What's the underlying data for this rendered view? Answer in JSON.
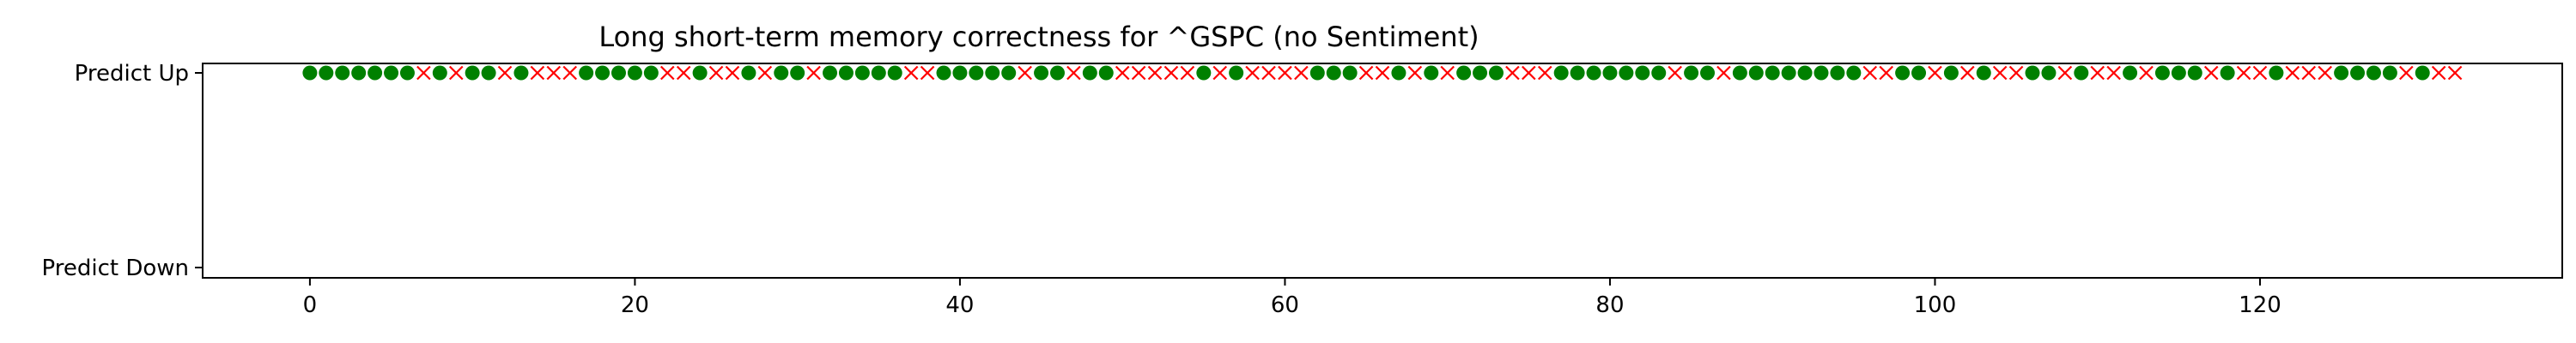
{
  "chart_data": {
    "type": "scatter",
    "title": "Long short-term memory correctness for ^GSPC (no Sentiment)",
    "xlabel": "",
    "ylabel": "",
    "xlim": [
      -6.6,
      138.6
    ],
    "xticks": [
      0,
      20,
      40,
      60,
      80,
      100,
      120
    ],
    "yticks": [
      "Predict Up",
      "Predict Down"
    ],
    "grid": false,
    "series": [
      {
        "marker": "filled-circle",
        "color": "#008000",
        "y": "Predict Up",
        "x": [
          0,
          1,
          2,
          3,
          4,
          5,
          6,
          8,
          10,
          11,
          13,
          17,
          18,
          19,
          20,
          21,
          24,
          27,
          29,
          30,
          32,
          33,
          34,
          35,
          36,
          39,
          40,
          41,
          42,
          43,
          45,
          46,
          48,
          49,
          55,
          57,
          62,
          63,
          64,
          67,
          69,
          71,
          72,
          73,
          77,
          78,
          79,
          80,
          81,
          82,
          83,
          85,
          86,
          88,
          89,
          90,
          91,
          92,
          93,
          94,
          95,
          98,
          99,
          101,
          103,
          106,
          107,
          109,
          112,
          114,
          115,
          116,
          118,
          121,
          125,
          126,
          127,
          128,
          130
        ]
      },
      {
        "marker": "x",
        "color": "#ff0000",
        "y": "Predict Up",
        "x": [
          7,
          9,
          12,
          14,
          15,
          16,
          22,
          23,
          25,
          26,
          28,
          31,
          37,
          38,
          44,
          47,
          50,
          51,
          52,
          53,
          54,
          56,
          58,
          59,
          60,
          61,
          65,
          66,
          68,
          70,
          74,
          75,
          76,
          84,
          87,
          96,
          97,
          100,
          102,
          104,
          105,
          108,
          110,
          111,
          113,
          117,
          119,
          120,
          122,
          123,
          124,
          129,
          131,
          132
        ]
      }
    ]
  }
}
